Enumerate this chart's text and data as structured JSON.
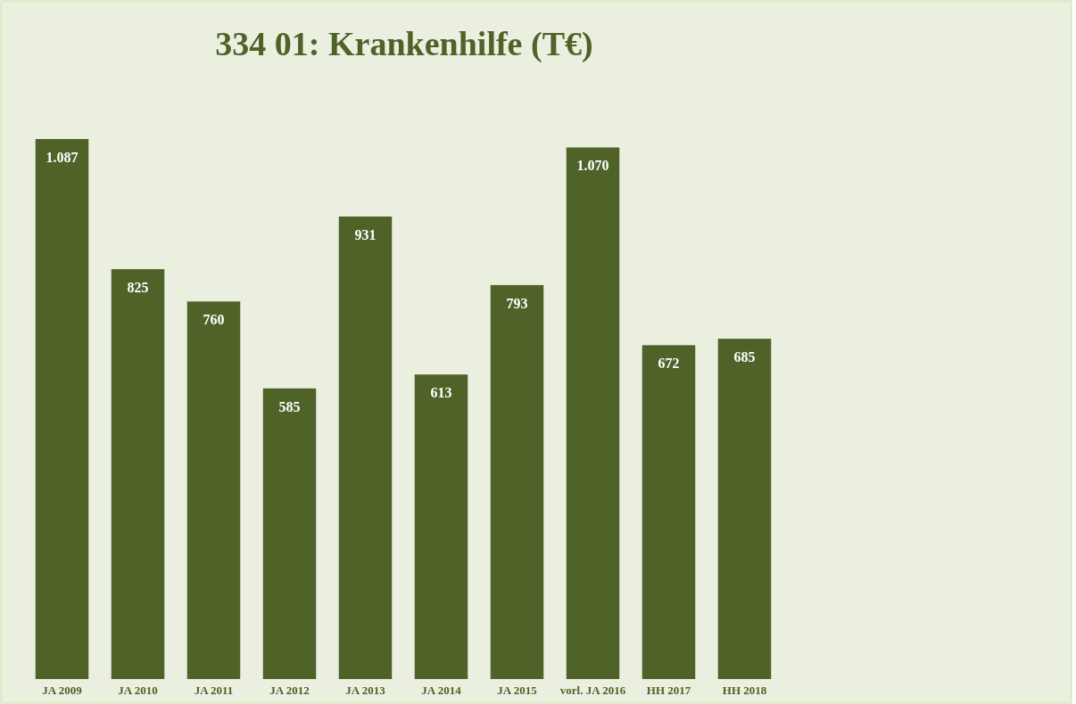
{
  "chart_data": {
    "type": "bar",
    "title": "334 01: Krankenhilfe (T€)",
    "categories": [
      "JA 2009",
      "JA 2010",
      "JA 2011",
      "JA 2012",
      "JA 2013",
      "JA 2014",
      "JA 2015",
      "vorl. JA 2016",
      "HH 2017",
      "HH 2018"
    ],
    "values": [
      1087,
      825,
      760,
      585,
      931,
      613,
      793,
      1070,
      672,
      685
    ],
    "value_labels": [
      "1.087",
      "825",
      "760",
      "585",
      "931",
      "613",
      "793",
      "1.070",
      "672",
      "685"
    ],
    "color": "#4f6228",
    "tick_labels": "x"
  }
}
